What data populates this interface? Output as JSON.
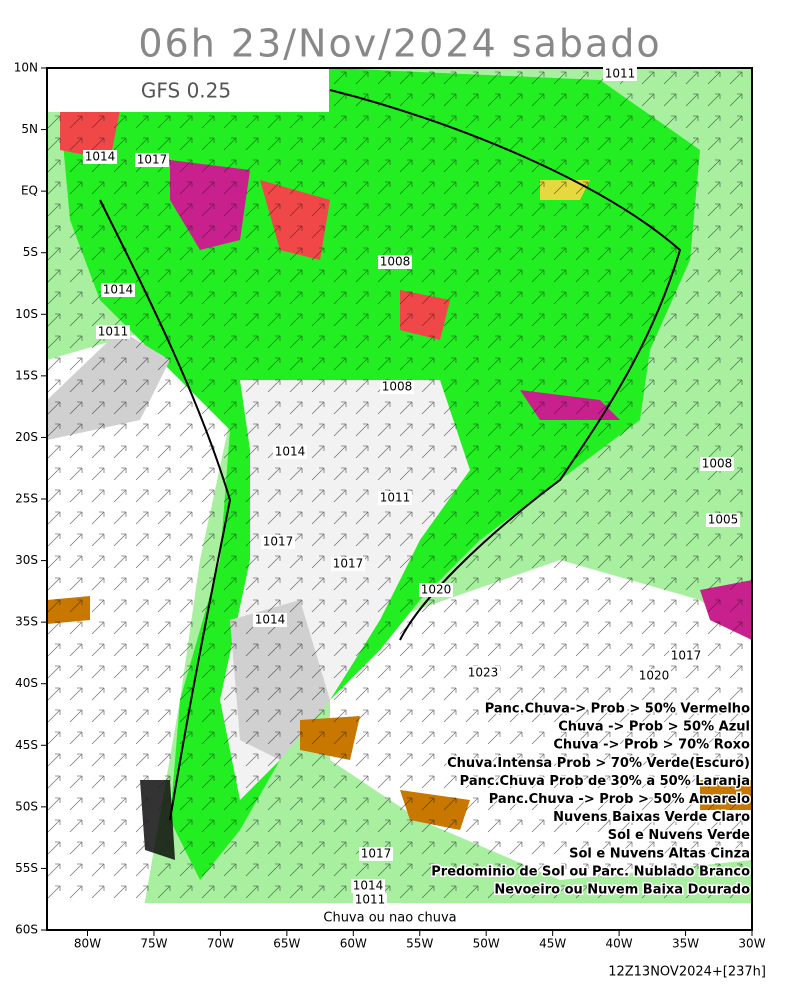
{
  "header": {
    "title": "06h 23/Nov/2024 sabado",
    "model": "GFS 0.25"
  },
  "axes": {
    "lat_labels": [
      "10N",
      "5N",
      "EQ",
      "5S",
      "10S",
      "15S",
      "20S",
      "25S",
      "30S",
      "35S",
      "40S",
      "45S",
      "50S",
      "55S",
      "60S"
    ],
    "lon_labels": [
      "80W",
      "75W",
      "70W",
      "65W",
      "60W",
      "55W",
      "50W",
      "45W",
      "40W",
      "35W",
      "30W"
    ]
  },
  "isobars": [
    "1011",
    "1014",
    "1017",
    "1014",
    "1011",
    "1008",
    "1008",
    "1014",
    "1011",
    "1017",
    "1017",
    "1020",
    "1014",
    "1023",
    "1020",
    "1017",
    "1008",
    "1005",
    "1017",
    "1014",
    "1011"
  ],
  "legend": [
    "Panc.Chuva-> Prob > 50% Vermelho",
    "Chuva -> Prob > 50% Azul",
    "Chuva -> Prob > 70% Roxo",
    "Chuva.Intensa Prob > 70% Verde(Escuro)",
    "Panc.Chuva Prob de 30% a 50% Laranja",
    "Panc.Chuva -> Prob > 50% Amarelo",
    "Nuvens Baixas Verde Claro",
    "Sol e Nuvens Verde",
    "Sol e Nuvens Altas Cinza",
    "Predominio de Sol ou Parc. Nublado Branco",
    "Nevoeiro ou Nuvem Baixa Dourado"
  ],
  "bottom_label": "Chuva ou nao chuva",
  "footer": "12Z13NOV2024+[237h]"
}
